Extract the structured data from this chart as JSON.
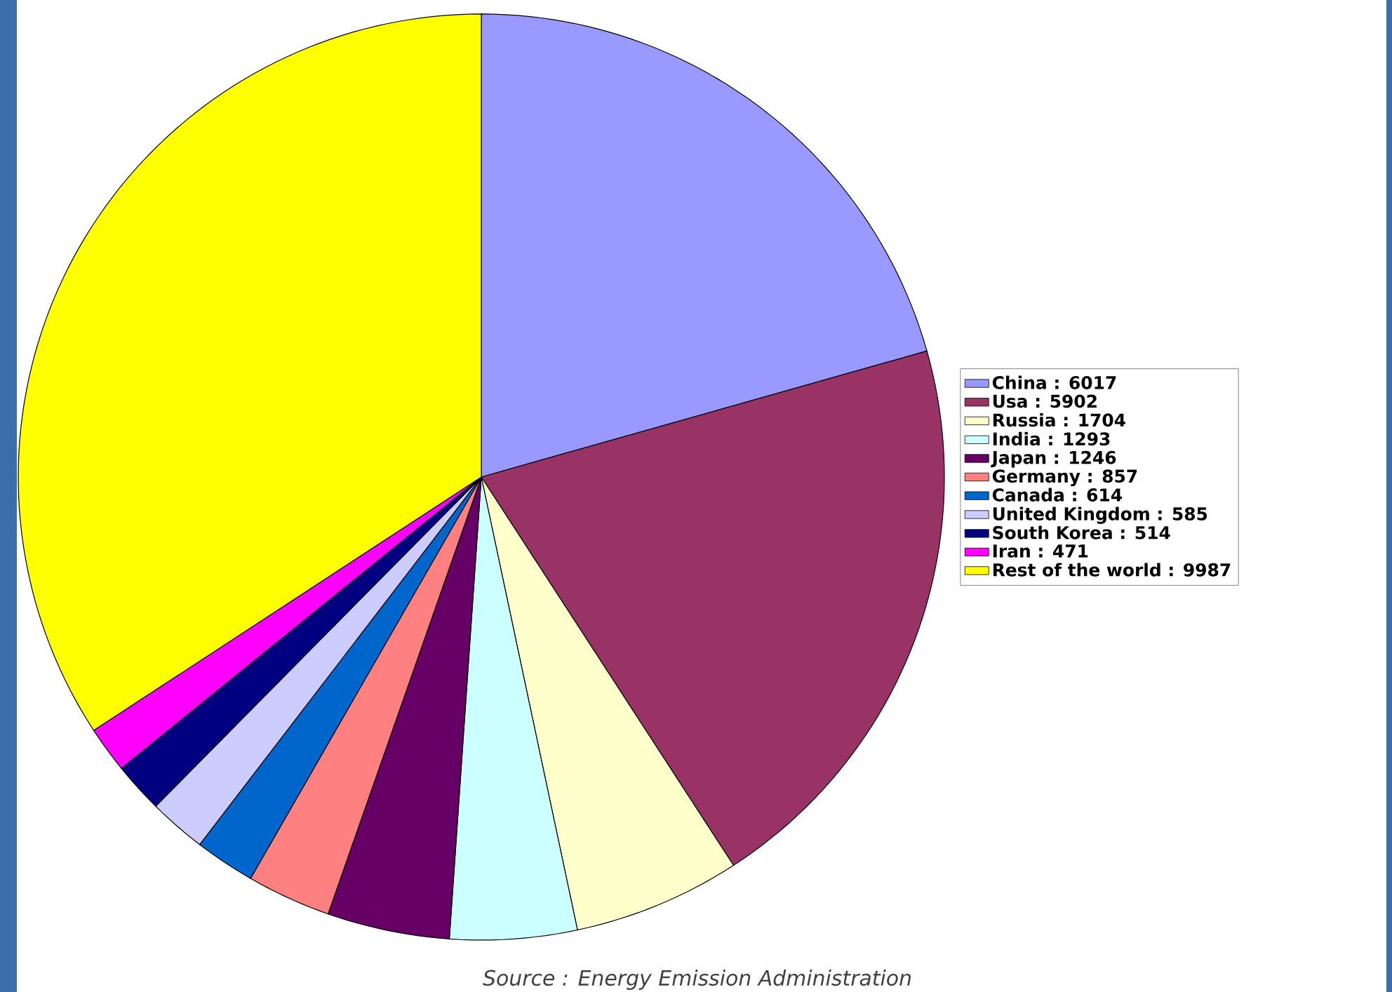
{
  "chart_data": {
    "type": "pie",
    "categories": [
      "China : 6017",
      "Usa : 5902",
      "Russia : 1704",
      "India : 1293",
      "Japan : 1246",
      "Germany : 857",
      "Canada : 614",
      "United Kingdom : 585",
      "South Korea : 514",
      "Iran : 471",
      "Rest of the world : 9987"
    ],
    "values": [
      6017,
      5902,
      1704,
      1293,
      1246,
      857,
      614,
      585,
      514,
      471,
      9987
    ],
    "colors": [
      "#9999ff",
      "#993366",
      "#ffffcc",
      "#ccffff",
      "#660066",
      "#ff8080",
      "#0066cc",
      "#ccccff",
      "#000080",
      "#ff00ff",
      "#ffff00"
    ],
    "legend": "right",
    "annotations": [
      "Source : Energy Emission Administration"
    ]
  }
}
